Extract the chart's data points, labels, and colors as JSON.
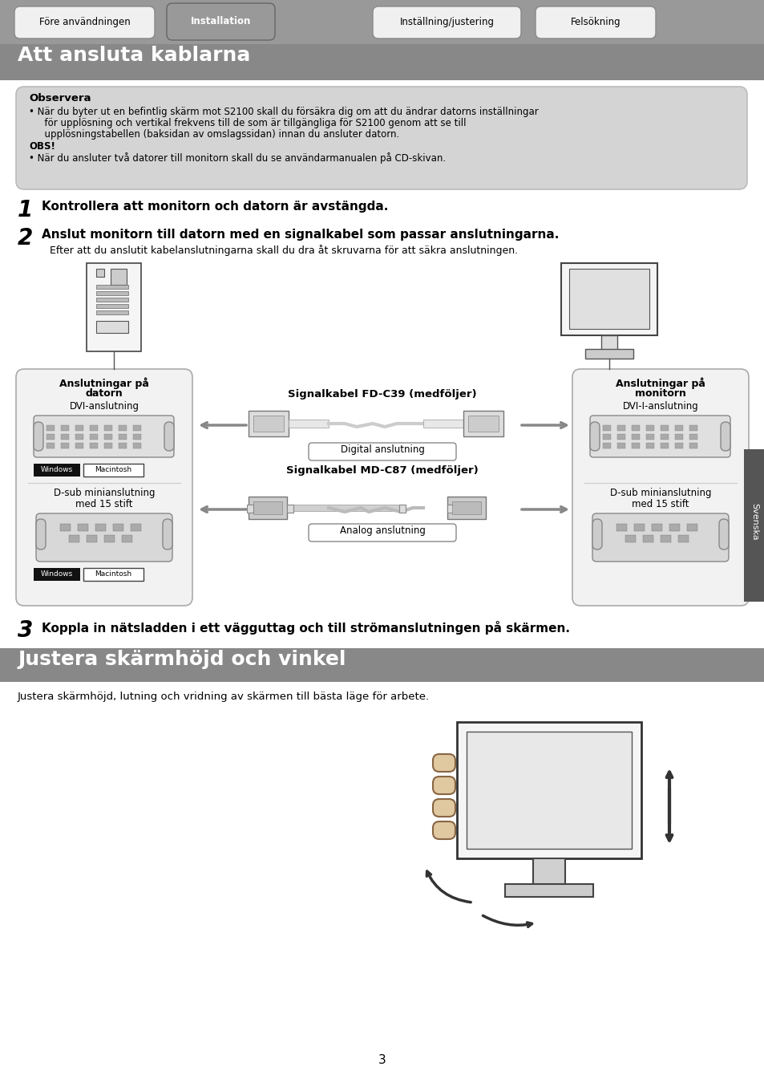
{
  "page_bg": "#ffffff",
  "header_bg": "#888888",
  "header_text": "Att ansluta kablarna",
  "header_text_color": "#ffffff",
  "tabs": [
    "Före användningen",
    "Installation",
    "Inställning/justering",
    "Felsökning"
  ],
  "tab_active": 1,
  "note_box_bg": "#d4d4d4",
  "note_title": "Observera",
  "note_line1": "• När du byter ut en befintlig skärm mot S2100 skall du försäkra dig om att du ändrar datorns inställningar",
  "note_line2": "  för upplösning och vertikal frekvens till de som är tillgängliga för S2100 genom att se till",
  "note_line3": "  upplösningstabellen (baksidan av omslagssidan) innan du ansluter datorn.",
  "note_line4": "OBS!",
  "note_line5": "• När du ansluter två datorer till monitorn skall du se användarmanualen på CD-skivan.",
  "step1_bold": "Kontrollera att monitorn och datorn är avstängda.",
  "step2_bold": "Anslut monitorn till datorn med en signalkabel som passar anslutningarna.",
  "step2_sub": "Efter att du anslutit kabelanslutningarna skall du dra åt skruvarna för att säkra anslutningen.",
  "left_box_title": "Anslutningar på\ndatorn",
  "left_box_sub1": "DVI-anslutning",
  "left_box_sub2": "D-sub minianslutning\nmed 15 stift",
  "right_box_title": "Anslutningar på\nmonitorn",
  "right_box_sub1": "DVI-I-anslutning",
  "right_box_sub2": "D-sub minianslutning\nmed 15 stift",
  "cable1_label": "Signalkabel FD-C39 (medföljer)",
  "cable1_sub": "Digital anslutning",
  "cable2_label": "Signalkabel MD-C87 (medföljer)",
  "cable2_sub": "Analog anslutning",
  "win_label": "Windows",
  "mac_label": "Macintosh",
  "step3_bold": "Koppla in nätsladden i ett vägguttag och till strömanslutningen på skärmen.",
  "section2_text": "Justera skärmhöjd och vinkel",
  "section2_body": "Justera skärmhöjd, lutning och vridning av skärmen till bästa läge för arbete.",
  "svenska_label": "Svenska",
  "page_num": "3"
}
